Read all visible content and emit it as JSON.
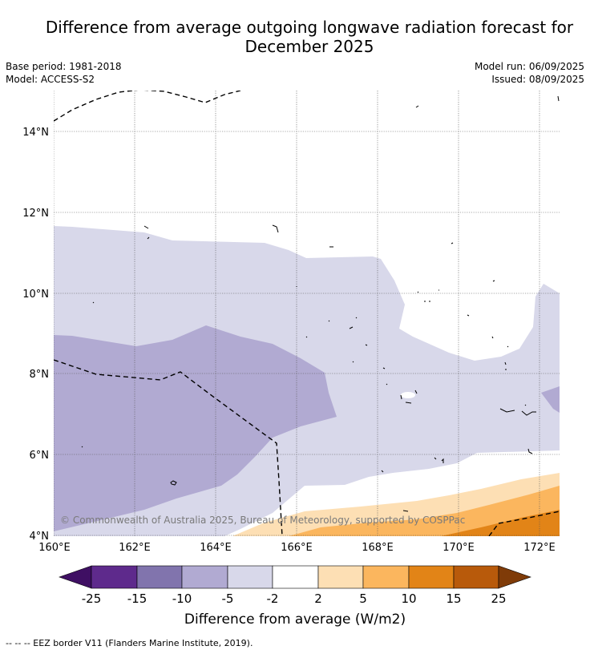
{
  "title_line1": "Difference from average outgoing longwave radiation forecast for",
  "title_line2": "December 2025",
  "base_period": "Base period: 1981-2018",
  "model": "Model: ACCESS-S2",
  "model_run": "Model run: 06/09/2025",
  "issued": "Issued: 08/09/2025",
  "copyright": "© Commonwealth of Australia 2025, Bureau of Meteorology, supported by COSPPac",
  "legend_note": "--  --  -- EEZ border V11 (Flanders Marine Institute, 2019).",
  "map": {
    "lat_labels": [
      "14°N",
      "12°N",
      "10°N",
      "8°N",
      "6°N",
      "4°N"
    ],
    "lon_labels": [
      "160°E",
      "162°E",
      "164°E",
      "166°E",
      "168°E",
      "170°E",
      "172°E"
    ],
    "lat_range": [
      4,
      15.1
    ],
    "lon_range": [
      160,
      172.5
    ]
  },
  "colorbar": {
    "title": "Difference from average (W/m2)",
    "tick_labels": [
      "-25",
      "-15",
      "-10",
      "-5",
      "-2",
      "2",
      "5",
      "10",
      "15",
      "25"
    ],
    "colors": {
      "below_-25": "#3f0f63",
      "-25_to_-15": "#5e2a8c",
      "-15_to_-10": "#8174ad",
      "-10_to_-5": "#b1aad2",
      "-5_to_-2": "#d8d8ea",
      "-2_to_2": "#ffffff",
      "2_to_5": "#fddfb4",
      "5_to_10": "#fbb65e",
      "10_to_15": "#e28417",
      "15_to_25": "#b85a0b",
      "above_25": "#7f3b08"
    }
  }
}
